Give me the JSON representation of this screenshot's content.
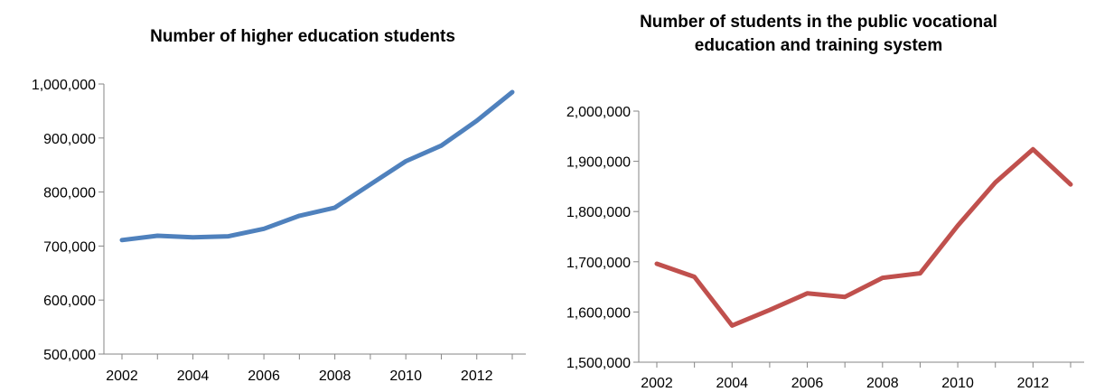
{
  "chart_data": [
    {
      "type": "line",
      "title": "Number of higher education students",
      "title_lines": [
        "Number of higher education students"
      ],
      "xlabel": "",
      "ylabel": "",
      "x": [
        2002,
        2003,
        2004,
        2005,
        2006,
        2007,
        2008,
        2009,
        2010,
        2011,
        2012,
        2013
      ],
      "x_tick_labels": [
        "2002",
        "2004",
        "2006",
        "2008",
        "2010",
        "2012"
      ],
      "y_tick_labels": [
        "1,000,000",
        "900,000",
        "800,000",
        "700,000",
        "600,000",
        "500,000"
      ],
      "ylim": [
        500000,
        1000000
      ],
      "grid": false,
      "series": [
        {
          "values": [
            711000,
            719000,
            716000,
            718000,
            732000,
            756000,
            771000,
            814000,
            857000,
            886000,
            932000,
            985000
          ],
          "color": "#4f81bd"
        }
      ]
    },
    {
      "type": "line",
      "title": "Number of students in the public vocational education and training system",
      "title_lines": [
        "Number of students in the public vocational",
        "education and training system"
      ],
      "xlabel": "",
      "ylabel": "",
      "x": [
        2002,
        2003,
        2004,
        2005,
        2006,
        2007,
        2008,
        2009,
        2010,
        2011,
        2012,
        2013
      ],
      "x_tick_labels": [
        "2002",
        "2004",
        "2006",
        "2008",
        "2010",
        "2012"
      ],
      "y_tick_labels": [
        "2,000,000",
        "1,900,000",
        "1,800,000",
        "1,700,000",
        "1,600,000",
        "1,500,000"
      ],
      "ylim": [
        1500000,
        2000000
      ],
      "grid": false,
      "series": [
        {
          "values": [
            1696000,
            1670000,
            1573000,
            1604000,
            1637000,
            1630000,
            1668000,
            1677000,
            1772000,
            1858000,
            1924000,
            1854000
          ],
          "color": "#c0504d"
        }
      ]
    }
  ]
}
